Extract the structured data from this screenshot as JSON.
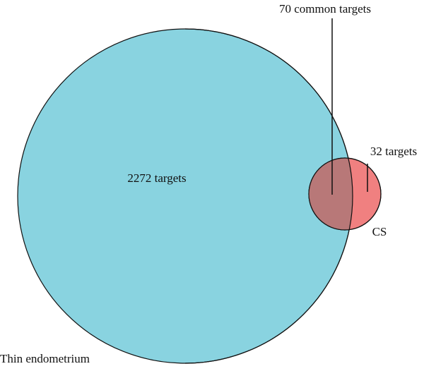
{
  "labels": {
    "common": "70 common targets",
    "cs_only": "32 targets",
    "thin_only": "2272 targets",
    "cs_set": "CS",
    "thin_set": "Thin endometrium"
  }
}
